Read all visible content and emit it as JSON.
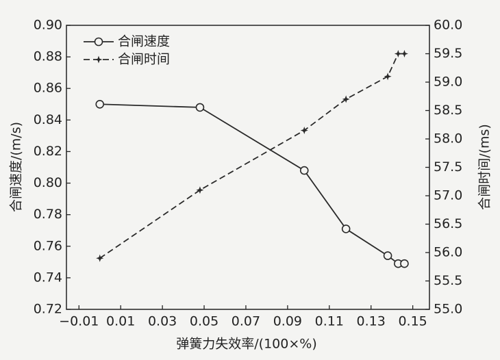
{
  "chart_data": {
    "type": "line",
    "xlabel": "弹簧力失效率/(100×%)",
    "ylabel": "合闸速度/(m/s)",
    "y2label": "合闸时间/(ms)",
    "x": [
      0,
      0.048,
      0.098,
      0.118,
      0.138,
      0.143,
      0.146
    ],
    "series": [
      {
        "name": "合闸速度",
        "color": "#2a2a2a",
        "marker": "circle",
        "dash": false,
        "values": [
          0.85,
          0.848,
          0.808,
          0.771,
          0.754,
          0.749,
          0.749
        ]
      },
      {
        "name": "合闸时间",
        "color": "#2a2a2a",
        "marker": "star",
        "dash": true,
        "axis": "y2",
        "values": [
          55.9,
          57.1,
          58.15,
          58.7,
          59.1,
          59.5,
          59.5
        ]
      }
    ],
    "xlim": [
      -0.016,
      0.158
    ],
    "xticks": [
      {
        "value": -0.01,
        "label": "−0.01"
      },
      0.01,
      0.03,
      0.05,
      0.07,
      0.09,
      0.11,
      0.13,
      0.15
    ],
    "ylim": [
      0.72,
      0.9
    ],
    "yticks": [
      0.72,
      0.74,
      0.76,
      0.78,
      {
        "value": 0.8,
        "label": "0.80"
      },
      0.82,
      0.84,
      0.86,
      0.88,
      {
        "value": 0.9,
        "label": "0.90"
      }
    ],
    "y2lim": [
      55.0,
      60.0
    ],
    "y2ticks": [
      {
        "value": 55,
        "label": "55.0"
      },
      55.5,
      {
        "value": 56,
        "label": "56.0"
      },
      56.5,
      {
        "value": 57,
        "label": "57.0"
      },
      57.5,
      {
        "value": 58,
        "label": "58.0"
      },
      58.5,
      {
        "value": 59,
        "label": "59.0"
      },
      59.5,
      {
        "value": 60,
        "label": "60.0"
      }
    ],
    "legend": "upper left"
  }
}
